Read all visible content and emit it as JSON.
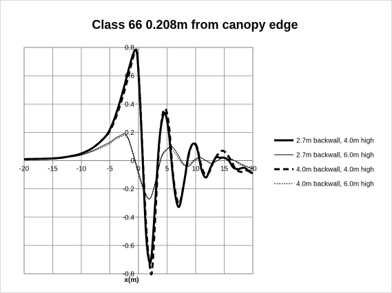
{
  "chart_data": {
    "type": "line",
    "title": "Class 66 0.208m from canopy edge",
    "xlabel": "x(m)",
    "ylabel": "",
    "xlim": [
      -20,
      20
    ],
    "ylim": [
      -0.8,
      0.8
    ],
    "xticks": [
      -20,
      -15,
      -10,
      -5,
      0,
      5,
      10,
      15,
      20
    ],
    "xtick_labels": [
      "-20",
      "-15",
      "-10",
      "-5",
      "0",
      "5",
      "10",
      "15",
      "20"
    ],
    "yticks": [
      0.8,
      0.6,
      0.4,
      0.2,
      0,
      -0.2,
      -0.4,
      -0.6,
      -0.8
    ],
    "ytick_labels": [
      "0.8",
      "0.6",
      "0.4",
      "0.2",
      "0",
      "-0.2",
      "-0.4",
      "-0.6",
      "-0.8"
    ],
    "grid": true,
    "legend_position": "right",
    "series": [
      {
        "name": "2.7m backwall, 4.0m high",
        "style": "solid-thick",
        "points": [
          [
            -20,
            0.01
          ],
          [
            -15,
            0.015
          ],
          [
            -12,
            0.03
          ],
          [
            -10,
            0.05
          ],
          [
            -8,
            0.09
          ],
          [
            -6,
            0.16
          ],
          [
            -5,
            0.22
          ],
          [
            -4,
            0.32
          ],
          [
            -3,
            0.45
          ],
          [
            -2,
            0.6
          ],
          [
            -1.2,
            0.72
          ],
          [
            -0.6,
            0.78
          ],
          [
            -0.2,
            0.74
          ],
          [
            0.3,
            0.4
          ],
          [
            0.8,
            -0.05
          ],
          [
            1.3,
            -0.5
          ],
          [
            1.8,
            -0.7
          ],
          [
            2.3,
            -0.67
          ],
          [
            3,
            -0.25
          ],
          [
            3.6,
            0.12
          ],
          [
            4.2,
            0.3
          ],
          [
            4.7,
            0.33
          ],
          [
            5.3,
            0.2
          ],
          [
            6,
            -0.1
          ],
          [
            6.6,
            -0.28
          ],
          [
            7.2,
            -0.32
          ],
          [
            8,
            -0.15
          ],
          [
            8.8,
            0.05
          ],
          [
            9.6,
            0.12
          ],
          [
            10.3,
            0.08
          ],
          [
            11,
            -0.06
          ],
          [
            11.8,
            -0.12
          ],
          [
            12.6,
            -0.05
          ],
          [
            13.5,
            0.02
          ],
          [
            14.3,
            0.02
          ],
          [
            15,
            0.02
          ],
          [
            15.8,
            0
          ],
          [
            16.6,
            -0.05
          ],
          [
            17.5,
            -0.06
          ],
          [
            18.5,
            -0.05
          ],
          [
            19.5,
            -0.08
          ],
          [
            20,
            -0.09
          ]
        ]
      },
      {
        "name": "2.7m backwall, 6.0m high",
        "style": "solid-thin",
        "points": [
          [
            -20,
            0.01
          ],
          [
            -15,
            0.015
          ],
          [
            -12,
            0.025
          ],
          [
            -10,
            0.04
          ],
          [
            -8,
            0.07
          ],
          [
            -6,
            0.11
          ],
          [
            -5,
            0.13
          ],
          [
            -4,
            0.16
          ],
          [
            -3,
            0.18
          ],
          [
            -2.5,
            0.19
          ],
          [
            -1.8,
            0.16
          ],
          [
            -1,
            0.06
          ],
          [
            0,
            -0.08
          ],
          [
            1,
            -0.21
          ],
          [
            2,
            -0.27
          ],
          [
            3,
            -0.15
          ],
          [
            4,
            0.02
          ],
          [
            5,
            0.08
          ],
          [
            5.8,
            0.1
          ],
          [
            6.8,
            0.05
          ],
          [
            7.8,
            -0.02
          ],
          [
            8.8,
            -0.04
          ],
          [
            9.8,
            0
          ],
          [
            10.8,
            0.02
          ],
          [
            11.8,
            0
          ],
          [
            12.8,
            -0.02
          ],
          [
            13.8,
            0
          ],
          [
            14.8,
            0.02
          ],
          [
            15.8,
            0.01
          ],
          [
            16.8,
            0
          ],
          [
            17.8,
            -0.02
          ],
          [
            18.8,
            -0.04
          ],
          [
            20,
            -0.06
          ]
        ]
      },
      {
        "name": "4.0m backwall, 4.0m high",
        "style": "dashed-thick",
        "points": [
          [
            -20,
            0.01
          ],
          [
            -15,
            0.015
          ],
          [
            -12,
            0.03
          ],
          [
            -10,
            0.05
          ],
          [
            -8,
            0.09
          ],
          [
            -6,
            0.16
          ],
          [
            -5,
            0.21
          ],
          [
            -4,
            0.3
          ],
          [
            -3,
            0.42
          ],
          [
            -2,
            0.56
          ],
          [
            -1.2,
            0.69
          ],
          [
            -0.6,
            0.77
          ],
          [
            -0.2,
            0.74
          ],
          [
            0.3,
            0.42
          ],
          [
            0.8,
            -0.02
          ],
          [
            1.4,
            -0.5
          ],
          [
            2,
            -0.75
          ],
          [
            2.4,
            -0.77
          ],
          [
            3,
            -0.35
          ],
          [
            3.6,
            0.1
          ],
          [
            4.2,
            0.32
          ],
          [
            4.8,
            0.36
          ],
          [
            5.4,
            0.22
          ],
          [
            6,
            -0.08
          ],
          [
            6.6,
            -0.25
          ],
          [
            7.2,
            -0.3
          ],
          [
            8,
            -0.15
          ],
          [
            8.8,
            0.04
          ],
          [
            9.5,
            0.12
          ],
          [
            10.2,
            0.1
          ],
          [
            11,
            -0.04
          ],
          [
            11.7,
            -0.1
          ],
          [
            12.4,
            -0.08
          ],
          [
            13.2,
            0
          ],
          [
            14,
            0.05
          ],
          [
            14.7,
            0.07
          ],
          [
            15.4,
            0.05
          ],
          [
            16.2,
            0
          ],
          [
            17,
            -0.06
          ],
          [
            18,
            -0.08
          ],
          [
            19,
            -0.07
          ],
          [
            20,
            -0.09
          ]
        ]
      },
      {
        "name": "4.0m backwall, 6.0m high",
        "style": "dotted-thin",
        "points": [
          [
            -20,
            0.01
          ],
          [
            -15,
            0.015
          ],
          [
            -12,
            0.025
          ],
          [
            -10,
            0.04
          ],
          [
            -8,
            0.065
          ],
          [
            -6,
            0.1
          ],
          [
            -5,
            0.12
          ],
          [
            -4,
            0.15
          ],
          [
            -3,
            0.17
          ],
          [
            -2.5,
            0.18
          ],
          [
            -1.8,
            0.15
          ],
          [
            -1,
            0.05
          ],
          [
            0,
            -0.1
          ],
          [
            1,
            -0.22
          ],
          [
            2,
            -0.27
          ],
          [
            3,
            -0.14
          ],
          [
            4,
            0.03
          ],
          [
            5,
            0.08
          ],
          [
            5.8,
            0.08
          ],
          [
            6.8,
            0.03
          ],
          [
            7.8,
            -0.03
          ],
          [
            8.8,
            -0.03
          ],
          [
            9.8,
            0.01
          ],
          [
            10.8,
            0.02
          ],
          [
            11.8,
            0
          ],
          [
            12.8,
            -0.02
          ],
          [
            13.8,
            0
          ],
          [
            14.8,
            0.02
          ],
          [
            15.8,
            0.02
          ],
          [
            16.8,
            0
          ],
          [
            17.8,
            -0.03
          ],
          [
            18.8,
            -0.04
          ],
          [
            20,
            -0.06
          ]
        ]
      }
    ]
  }
}
